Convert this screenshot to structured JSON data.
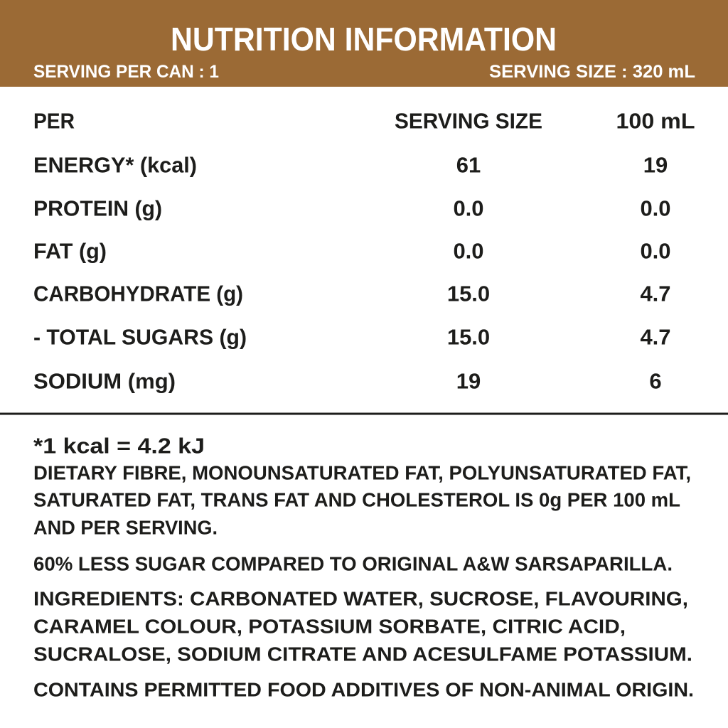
{
  "header": {
    "title": "NUTRITION INFORMATION",
    "serving_per_can": "SERVING PER CAN : 1",
    "serving_size": "SERVING SIZE : 320 mL"
  },
  "table": {
    "columns": [
      "PER",
      "SERVING SIZE",
      "100 mL"
    ],
    "rows": [
      [
        "ENERGY* (kcal)",
        "61",
        "19"
      ],
      [
        "PROTEIN (g)",
        "0.0",
        "0.0"
      ],
      [
        "FAT (g)",
        "0.0",
        "0.0"
      ],
      [
        "CARBOHYDRATE (g)",
        "15.0",
        "4.7"
      ],
      [
        "- TOTAL SUGARS (g)",
        "15.0",
        "4.7"
      ],
      [
        "SODIUM (mg)",
        "19",
        "6"
      ]
    ]
  },
  "notes": {
    "footnote": "*1 kcal = 4.2 kJ",
    "paragraphs": [
      [
        "DIETARY FIBRE, MONOUNSATURATED FAT, POLYUNSATURATED FAT,",
        "SATURATED FAT, TRANS FAT AND CHOLESTEROL IS 0g PER 100 mL",
        "AND PER SERVING."
      ],
      [
        "60% LESS SUGAR COMPARED TO ORIGINAL A&W SARSAPARILLA."
      ],
      [
        "INGREDIENTS: CARBONATED WATER, SUCROSE, FLAVOURING,",
        "CARAMEL COLOUR, POTASSIUM SORBATE, CITRIC ACID,",
        "SUCRALOSE, SODIUM CITRATE AND ACESULFAME POTASSIUM."
      ],
      [
        "CONTAINS PERMITTED FOOD ADDITIVES OF NON-ANIMAL ORIGIN."
      ]
    ]
  }
}
